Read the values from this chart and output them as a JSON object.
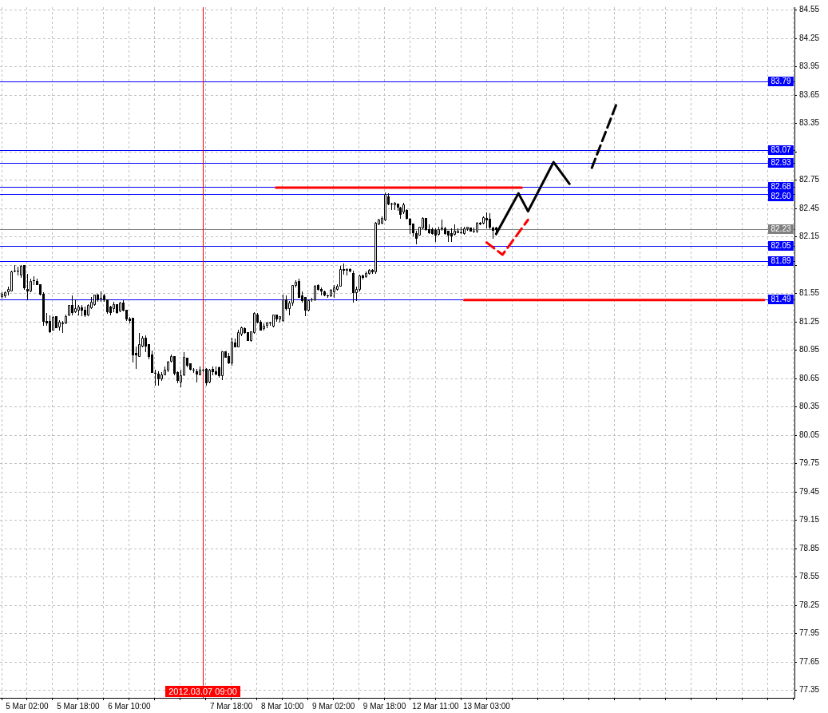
{
  "chart_data": {
    "type": "candlestick",
    "categories": [
      null,
      null,
      null,
      null,
      null,
      null,
      null,
      null,
      "5 Mar 02:00",
      null,
      null,
      null,
      null,
      null,
      null,
      null,
      null,
      null,
      null,
      null,
      null,
      null,
      null,
      null,
      "5 Mar 18:00",
      null,
      null,
      null,
      null,
      null,
      null,
      null,
      null,
      null,
      null,
      null,
      null,
      null,
      null,
      null,
      "6 Mar 10:00",
      null,
      null,
      null,
      null,
      null,
      null,
      null,
      null,
      null,
      null,
      null,
      null,
      null,
      null,
      null,
      null,
      null,
      null,
      null,
      null,
      null,
      null,
      "2012.03.07 09:00",
      null,
      null,
      null,
      null,
      null,
      null,
      null,
      null,
      "7 Mar 18:00",
      null,
      null,
      null,
      null,
      null,
      null,
      null,
      null,
      null,
      null,
      null,
      null,
      null,
      null,
      null,
      "8 Mar 10:00",
      null,
      null,
      null,
      null,
      null,
      null,
      null,
      null,
      null,
      null,
      null,
      null,
      null,
      null,
      null,
      "9 Mar 02:00",
      null,
      null,
      null,
      null,
      null,
      null,
      null,
      null,
      null,
      null,
      null,
      null,
      null,
      null,
      null,
      "9 Mar 18:00",
      null,
      null,
      null,
      null,
      null,
      null,
      null,
      null,
      null,
      null,
      null,
      null,
      null,
      null,
      null,
      "12 Mar 11:00",
      null,
      null,
      null,
      null,
      null,
      null,
      null,
      null,
      null,
      null,
      null,
      null,
      null,
      null,
      null,
      "13 Mar 03:00",
      null,
      null,
      null,
      null,
      null,
      null,
      null,
      null,
      null,
      null,
      null,
      null,
      null,
      null,
      null,
      null,
      null,
      null,
      null,
      null,
      null,
      null,
      null,
      null,
      null,
      null,
      null,
      null,
      null,
      null,
      null,
      null,
      null,
      null,
      null,
      null,
      null,
      null,
      null,
      null,
      null,
      null,
      null,
      null,
      null,
      null,
      null,
      null,
      null,
      null,
      null,
      null,
      null,
      null,
      null,
      null,
      null,
      null,
      null,
      null,
      null,
      null,
      null,
      null,
      null,
      null,
      null,
      null,
      null,
      null,
      null,
      null,
      null,
      null,
      null,
      null,
      null,
      null,
      null,
      null,
      null,
      null,
      null,
      null,
      null,
      null,
      null,
      null,
      null,
      null,
      null,
      null,
      null,
      null,
      null,
      null
    ],
    "ohlc": [
      [
        81.52,
        81.56,
        81.5,
        81.55
      ],
      [
        81.53,
        81.57,
        81.51,
        81.56
      ],
      [
        81.57,
        81.62,
        81.54,
        81.6
      ],
      [
        81.58,
        81.79,
        81.58,
        81.78
      ],
      [
        81.79,
        81.85,
        81.78,
        81.79
      ],
      [
        81.79,
        81.83,
        81.75,
        81.79
      ],
      [
        81.75,
        81.85,
        81.72,
        81.84
      ],
      [
        81.85,
        81.85,
        81.6,
        81.61
      ],
      [
        81.6,
        81.76,
        81.49,
        81.58
      ],
      [
        81.58,
        81.71,
        81.57,
        81.68
      ],
      [
        81.69,
        81.73,
        81.65,
        81.69
      ],
      [
        81.68,
        81.71,
        81.65,
        81.65
      ],
      [
        81.65,
        81.65,
        81.54,
        81.55
      ],
      [
        81.55,
        81.56,
        81.22,
        81.26
      ],
      [
        81.26,
        81.34,
        81.22,
        81.24
      ],
      [
        81.26,
        81.32,
        81.14,
        81.15
      ],
      [
        81.17,
        81.31,
        81.17,
        81.3
      ],
      [
        81.31,
        81.31,
        81.19,
        81.19
      ],
      [
        81.2,
        81.27,
        81.17,
        81.25
      ],
      [
        81.23,
        81.26,
        81.14,
        81.24
      ],
      [
        81.24,
        81.33,
        81.23,
        81.31
      ],
      [
        81.33,
        81.43,
        81.32,
        81.43
      ],
      [
        81.43,
        81.53,
        81.33,
        81.35
      ],
      [
        81.36,
        81.49,
        81.35,
        81.39
      ],
      [
        81.38,
        81.43,
        81.33,
        81.41
      ],
      [
        81.4,
        81.43,
        81.32,
        81.38
      ],
      [
        81.38,
        81.41,
        81.31,
        81.33
      ],
      [
        81.33,
        81.44,
        81.32,
        81.43
      ],
      [
        81.4,
        81.51,
        81.39,
        81.46
      ],
      [
        81.44,
        81.54,
        81.43,
        81.54
      ],
      [
        81.54,
        81.55,
        81.47,
        81.49
      ],
      [
        81.5,
        81.57,
        81.47,
        81.5
      ],
      [
        81.53,
        81.55,
        81.47,
        81.49
      ],
      [
        81.49,
        81.49,
        81.34,
        81.36
      ],
      [
        81.41,
        81.42,
        81.33,
        81.35
      ],
      [
        81.39,
        81.46,
        81.36,
        81.44
      ],
      [
        81.44,
        81.44,
        81.34,
        81.35
      ],
      [
        81.37,
        81.46,
        81.36,
        81.45
      ],
      [
        81.45,
        81.48,
        81.37,
        81.38
      ],
      [
        81.38,
        81.38,
        81.27,
        81.28
      ],
      [
        81.28,
        81.3,
        81.24,
        81.27
      ],
      [
        81.29,
        81.29,
        80.83,
        80.9
      ],
      [
        80.92,
        80.99,
        80.76,
        80.9
      ],
      [
        80.89,
        81.13,
        80.89,
        81.01
      ],
      [
        81.0,
        81.1,
        80.99,
        81.08
      ],
      [
        81.08,
        81.11,
        80.94,
        81.0
      ],
      [
        81.01,
        81.01,
        80.86,
        80.89
      ],
      [
        80.9,
        80.95,
        80.72,
        80.72
      ],
      [
        80.71,
        80.74,
        80.58,
        80.71
      ],
      [
        80.7,
        80.73,
        80.58,
        80.65
      ],
      [
        80.65,
        80.72,
        80.63,
        80.69
      ],
      [
        80.69,
        80.78,
        80.69,
        80.74
      ],
      [
        80.74,
        80.84,
        80.73,
        80.83
      ],
      [
        80.84,
        80.9,
        80.83,
        80.89
      ],
      [
        80.89,
        80.89,
        80.69,
        80.71
      ],
      [
        80.72,
        80.73,
        80.61,
        80.63
      ],
      [
        80.62,
        80.74,
        80.57,
        80.68
      ],
      [
        80.69,
        80.93,
        80.68,
        80.88
      ],
      [
        80.87,
        80.87,
        80.78,
        80.79
      ],
      [
        80.81,
        80.81,
        80.74,
        80.75
      ],
      [
        80.74,
        80.76,
        80.72,
        80.74
      ],
      [
        80.73,
        80.75,
        80.62,
        80.7
      ],
      [
        80.69,
        80.78,
        80.69,
        80.74
      ],
      [
        80.74,
        80.75,
        80.73,
        80.74
      ],
      [
        80.75,
        80.76,
        80.58,
        80.61
      ],
      [
        80.62,
        80.75,
        80.61,
        80.74
      ],
      [
        80.75,
        80.78,
        80.69,
        80.73
      ],
      [
        80.73,
        80.78,
        80.69,
        80.7
      ],
      [
        80.77,
        80.78,
        80.67,
        80.68
      ],
      [
        80.68,
        80.94,
        80.64,
        80.94
      ],
      [
        80.94,
        80.94,
        80.88,
        80.88
      ],
      [
        80.89,
        80.92,
        80.81,
        80.82
      ],
      [
        80.82,
        81.08,
        80.79,
        81.04
      ],
      [
        81.03,
        81.07,
        80.99,
        80.99
      ],
      [
        80.99,
        81.17,
        80.99,
        81.14
      ],
      [
        81.12,
        81.2,
        81.11,
        81.19
      ],
      [
        81.18,
        81.19,
        81.13,
        81.14
      ],
      [
        81.14,
        81.14,
        81.06,
        81.06
      ],
      [
        81.06,
        81.15,
        81.05,
        81.15
      ],
      [
        81.14,
        81.35,
        81.13,
        81.34
      ],
      [
        81.33,
        81.34,
        81.24,
        81.25
      ],
      [
        81.25,
        81.27,
        81.17,
        81.17
      ],
      [
        81.18,
        81.23,
        81.17,
        81.21
      ],
      [
        81.22,
        81.25,
        81.19,
        81.24
      ],
      [
        81.24,
        81.25,
        81.22,
        81.24
      ],
      [
        81.21,
        81.33,
        81.2,
        81.33
      ],
      [
        81.33,
        81.33,
        81.26,
        81.28
      ],
      [
        81.28,
        81.31,
        81.25,
        81.31
      ],
      [
        81.27,
        81.54,
        81.26,
        81.49
      ],
      [
        81.49,
        81.53,
        81.38,
        81.39
      ],
      [
        81.39,
        81.47,
        81.33,
        81.45
      ],
      [
        81.45,
        81.64,
        81.43,
        81.64
      ],
      [
        81.64,
        81.69,
        81.62,
        81.67
      ],
      [
        81.68,
        81.71,
        81.51,
        81.51
      ],
      [
        81.53,
        81.57,
        81.46,
        81.48
      ],
      [
        81.51,
        81.51,
        81.32,
        81.38
      ],
      [
        81.38,
        81.49,
        81.37,
        81.48
      ],
      [
        81.49,
        81.5,
        81.47,
        81.49
      ],
      [
        81.49,
        81.64,
        81.48,
        81.63
      ],
      [
        81.64,
        81.65,
        81.59,
        81.6
      ],
      [
        81.6,
        81.61,
        81.54,
        81.58
      ],
      [
        81.57,
        81.58,
        81.53,
        81.54
      ],
      [
        81.53,
        81.54,
        81.51,
        81.53
      ],
      [
        81.53,
        81.6,
        81.52,
        81.59
      ],
      [
        81.57,
        81.64,
        81.51,
        81.61
      ],
      [
        81.6,
        81.65,
        81.59,
        81.63
      ],
      [
        81.63,
        81.84,
        81.63,
        81.81
      ],
      [
        81.81,
        81.87,
        81.76,
        81.8
      ],
      [
        81.8,
        81.82,
        81.75,
        81.81
      ],
      [
        81.81,
        81.82,
        81.78,
        81.79
      ],
      [
        81.77,
        81.79,
        81.46,
        81.56
      ],
      [
        81.56,
        81.62,
        81.48,
        81.6
      ],
      [
        81.6,
        81.75,
        81.58,
        81.74
      ],
      [
        81.74,
        81.75,
        81.71,
        81.72
      ],
      [
        81.73,
        81.78,
        81.72,
        81.77
      ],
      [
        81.77,
        81.81,
        81.76,
        81.8
      ],
      [
        81.8,
        81.81,
        81.77,
        81.78
      ],
      [
        81.78,
        82.31,
        81.77,
        82.3
      ],
      [
        82.29,
        82.34,
        82.28,
        82.33
      ],
      [
        82.3,
        82.37,
        82.29,
        82.35
      ],
      [
        82.33,
        82.62,
        82.32,
        82.6
      ],
      [
        82.58,
        82.61,
        82.49,
        82.5
      ],
      [
        82.5,
        82.51,
        82.44,
        82.5
      ],
      [
        82.49,
        82.52,
        82.44,
        82.51
      ],
      [
        82.5,
        82.5,
        82.43,
        82.47
      ],
      [
        82.46,
        82.47,
        82.35,
        82.39
      ],
      [
        82.42,
        82.51,
        82.4,
        82.49
      ],
      [
        82.43,
        82.44,
        82.34,
        82.35
      ],
      [
        82.34,
        82.35,
        82.19,
        82.28
      ],
      [
        82.29,
        82.29,
        82.16,
        82.2
      ],
      [
        82.19,
        82.21,
        82.08,
        82.14
      ],
      [
        82.17,
        82.26,
        82.17,
        82.26
      ],
      [
        82.25,
        82.36,
        82.24,
        82.35
      ],
      [
        82.35,
        82.35,
        82.22,
        82.23
      ],
      [
        82.23,
        82.28,
        82.19,
        82.2
      ],
      [
        82.23,
        82.25,
        82.18,
        82.19
      ],
      [
        82.22,
        82.24,
        82.1,
        82.17
      ],
      [
        82.18,
        82.26,
        82.17,
        82.23
      ],
      [
        82.24,
        82.33,
        82.22,
        82.25
      ],
      [
        82.24,
        82.26,
        82.18,
        82.19
      ],
      [
        82.21,
        82.21,
        82.1,
        82.17
      ],
      [
        82.19,
        82.24,
        82.1,
        82.16
      ],
      [
        82.18,
        82.28,
        82.17,
        82.21
      ],
      [
        82.2,
        82.24,
        82.2,
        82.21
      ],
      [
        82.2,
        82.26,
        82.19,
        82.2
      ],
      [
        82.19,
        82.26,
        82.18,
        82.24
      ],
      [
        82.24,
        82.26,
        82.22,
        82.26
      ],
      [
        82.25,
        82.25,
        82.21,
        82.21
      ],
      [
        82.21,
        82.25,
        82.2,
        82.21
      ],
      [
        82.21,
        82.31,
        82.2,
        82.3
      ],
      [
        82.3,
        82.31,
        82.28,
        82.29
      ],
      [
        82.3,
        82.37,
        82.29,
        82.36
      ],
      [
        82.35,
        82.41,
        82.25,
        82.33
      ],
      [
        82.34,
        82.4,
        82.24,
        82.26
      ],
      [
        82.25,
        82.26,
        82.14,
        82.22
      ],
      [
        82.25,
        82.26,
        82.17,
        82.23
      ],
      null,
      null,
      null,
      null,
      null,
      null,
      null,
      null,
      null,
      null,
      null,
      null,
      null,
      null,
      null,
      null,
      null,
      null,
      null,
      null,
      null,
      null,
      null,
      null,
      null,
      null,
      null,
      null,
      null,
      null,
      null,
      null,
      null,
      null,
      null,
      null,
      null,
      null,
      null,
      null,
      null,
      null,
      null,
      null,
      null,
      null,
      null,
      null,
      null,
      null,
      null,
      null,
      null,
      null,
      null,
      null,
      null,
      null,
      null,
      null,
      null,
      null,
      null,
      null,
      null,
      null,
      null,
      null,
      null,
      null,
      null,
      null,
      null,
      null,
      null,
      null,
      null,
      null,
      null,
      null,
      null,
      null,
      null,
      null,
      null,
      null,
      null,
      null,
      null,
      null,
      null,
      null,
      null
    ],
    "series": [
      {
        "type": "line",
        "color": "#000000",
        "values": [
          null,
          null,
          null,
          null,
          null,
          null,
          null,
          null,
          null,
          null,
          null,
          null,
          null,
          null,
          null,
          null,
          null,
          null,
          null,
          null,
          null,
          null,
          null,
          null,
          null,
          null,
          null,
          null,
          null,
          null,
          null,
          null,
          null,
          null,
          null,
          null,
          null,
          null,
          null,
          null,
          null,
          null,
          null,
          null,
          null,
          null,
          null,
          null,
          null,
          null,
          null,
          null,
          null,
          null,
          null,
          null,
          null,
          null,
          null,
          null,
          null,
          null,
          null,
          null,
          null,
          null,
          null,
          null,
          null,
          null,
          null,
          null,
          null,
          null,
          null,
          null,
          null,
          null,
          null,
          null,
          null,
          null,
          null,
          null,
          null,
          null,
          null,
          null,
          null,
          null,
          null,
          null,
          null,
          null,
          null,
          null,
          null,
          null,
          null,
          null,
          null,
          null,
          null,
          null,
          null,
          null,
          null,
          null,
          null,
          null,
          null,
          null,
          null,
          null,
          null,
          null,
          null,
          null,
          null,
          null,
          null,
          null,
          null,
          null,
          null,
          null,
          null,
          null,
          null,
          null,
          null,
          null,
          null,
          null,
          null,
          null,
          null,
          null,
          null,
          null,
          null,
          null,
          null,
          null,
          null,
          null,
          null,
          null,
          null,
          null,
          null,
          null,
          null,
          null,
          null,
          82.18,
          null,
          null,
          null,
          null,
          null,
          null,
          82.61,
          null,
          null,
          82.42,
          null,
          null,
          null,
          null,
          null,
          null,
          null,
          82.94,
          null,
          null,
          null,
          null,
          82.71,
          null,
          null,
          null,
          null,
          null,
          null,
          null,
          null,
          null,
          null,
          null,
          null,
          null,
          null,
          null,
          null,
          null,
          null,
          null,
          null,
          null,
          null,
          null,
          null,
          null,
          null,
          null,
          null,
          null,
          null,
          null,
          null,
          null,
          null,
          null,
          null,
          null,
          null,
          null,
          null,
          null,
          null,
          null,
          null,
          null,
          null,
          null,
          null,
          null,
          null,
          null,
          null,
          null,
          null,
          null,
          null,
          null,
          null,
          null,
          null,
          null,
          null,
          null,
          null,
          null,
          null,
          null,
          null,
          null,
          null
        ]
      },
      {
        "type": "line",
        "color": "#000000",
        "line_style": "dashed",
        "values": [
          null,
          null,
          null,
          null,
          null,
          null,
          null,
          null,
          null,
          null,
          null,
          null,
          null,
          null,
          null,
          null,
          null,
          null,
          null,
          null,
          null,
          null,
          null,
          null,
          null,
          null,
          null,
          null,
          null,
          null,
          null,
          null,
          null,
          null,
          null,
          null,
          null,
          null,
          null,
          null,
          null,
          null,
          null,
          null,
          null,
          null,
          null,
          null,
          null,
          null,
          null,
          null,
          null,
          null,
          null,
          null,
          null,
          null,
          null,
          null,
          null,
          null,
          null,
          null,
          null,
          null,
          null,
          null,
          null,
          null,
          null,
          null,
          null,
          null,
          null,
          null,
          null,
          null,
          null,
          null,
          null,
          null,
          null,
          null,
          null,
          null,
          null,
          null,
          null,
          null,
          null,
          null,
          null,
          null,
          null,
          null,
          null,
          null,
          null,
          null,
          null,
          null,
          null,
          null,
          null,
          null,
          null,
          null,
          null,
          null,
          null,
          null,
          null,
          null,
          null,
          null,
          null,
          null,
          null,
          null,
          null,
          null,
          null,
          null,
          null,
          null,
          null,
          null,
          null,
          null,
          null,
          null,
          null,
          null,
          null,
          null,
          null,
          null,
          null,
          null,
          null,
          null,
          null,
          null,
          null,
          null,
          null,
          null,
          null,
          null,
          null,
          null,
          null,
          null,
          null,
          null,
          null,
          null,
          null,
          null,
          null,
          null,
          null,
          null,
          null,
          null,
          null,
          null,
          null,
          null,
          null,
          null,
          null,
          null,
          null,
          null,
          null,
          null,
          null,
          null,
          null,
          null,
          null,
          null,
          null,
          82.88,
          null,
          null,
          null,
          null,
          null,
          null,
          null,
          83.58,
          null,
          null,
          null,
          null,
          null,
          null,
          null,
          null,
          null,
          null,
          null,
          null,
          null,
          null,
          null,
          null,
          null,
          null,
          null,
          null,
          null,
          null,
          null,
          null,
          null,
          null,
          null,
          null,
          null,
          null,
          null,
          null,
          null,
          null,
          null,
          null,
          null,
          null,
          null,
          null,
          null,
          null,
          null,
          null,
          null,
          null,
          null,
          null,
          null,
          null,
          null,
          null,
          null,
          null,
          null
        ]
      },
      {
        "type": "line",
        "color": "#ff0000",
        "line_style": "dashed",
        "values": [
          null,
          null,
          null,
          null,
          null,
          null,
          null,
          null,
          null,
          null,
          null,
          null,
          null,
          null,
          null,
          null,
          null,
          null,
          null,
          null,
          null,
          null,
          null,
          null,
          null,
          null,
          null,
          null,
          null,
          null,
          null,
          null,
          null,
          null,
          null,
          null,
          null,
          null,
          null,
          null,
          null,
          null,
          null,
          null,
          null,
          null,
          null,
          null,
          null,
          null,
          null,
          null,
          null,
          null,
          null,
          null,
          null,
          null,
          null,
          null,
          null,
          null,
          null,
          null,
          null,
          null,
          null,
          null,
          null,
          null,
          null,
          null,
          null,
          null,
          null,
          null,
          null,
          null,
          null,
          null,
          null,
          null,
          null,
          null,
          null,
          null,
          null,
          null,
          null,
          null,
          null,
          null,
          null,
          null,
          null,
          null,
          null,
          null,
          null,
          null,
          null,
          null,
          null,
          null,
          null,
          null,
          null,
          null,
          null,
          null,
          null,
          null,
          null,
          null,
          null,
          null,
          null,
          null,
          null,
          null,
          null,
          null,
          null,
          null,
          null,
          null,
          null,
          null,
          null,
          null,
          null,
          null,
          null,
          null,
          null,
          null,
          null,
          null,
          null,
          null,
          null,
          null,
          null,
          null,
          null,
          null,
          null,
          null,
          null,
          null,
          null,
          null,
          82.09,
          null,
          null,
          null,
          null,
          81.96,
          null,
          null,
          null,
          null,
          null,
          null,
          null,
          82.33,
          null,
          null,
          null,
          null,
          null,
          null,
          null,
          null,
          null,
          null,
          null,
          null,
          null,
          null,
          null,
          null,
          null,
          null,
          null,
          null,
          null,
          null,
          null,
          null,
          null,
          null,
          null,
          null,
          null,
          null,
          null,
          null,
          null,
          null,
          null,
          null,
          null,
          null,
          null,
          null,
          null,
          null,
          null,
          null,
          null,
          null,
          null,
          null,
          null,
          null,
          null,
          null,
          null,
          null,
          null,
          null,
          null,
          null,
          null,
          null,
          null,
          null,
          null,
          null,
          null,
          null,
          null,
          null,
          null,
          null,
          null,
          null,
          null,
          null,
          null,
          null,
          null,
          null,
          null,
          null,
          null,
          null,
          null
        ]
      },
      {
        "type": "line",
        "color": "#ff0000",
        "values": [
          null,
          null,
          null,
          null,
          null,
          null,
          null,
          null,
          null,
          null,
          null,
          null,
          null,
          null,
          null,
          null,
          null,
          null,
          null,
          null,
          null,
          null,
          null,
          null,
          null,
          null,
          null,
          null,
          null,
          null,
          null,
          null,
          null,
          null,
          null,
          null,
          null,
          null,
          null,
          null,
          null,
          null,
          null,
          null,
          null,
          null,
          null,
          null,
          null,
          null,
          null,
          null,
          null,
          null,
          null,
          null,
          null,
          null,
          null,
          null,
          null,
          null,
          null,
          null,
          null,
          null,
          null,
          null,
          null,
          null,
          null,
          null,
          null,
          null,
          null,
          null,
          null,
          null,
          null,
          null,
          null,
          null,
          null,
          null,
          null,
          null,
          82.67,
          null,
          null,
          null,
          null,
          null,
          null,
          null,
          null,
          null,
          null,
          null,
          null,
          null,
          null,
          null,
          null,
          null,
          null,
          null,
          null,
          null,
          null,
          null,
          null,
          null,
          null,
          null,
          null,
          null,
          null,
          null,
          null,
          null,
          null,
          null,
          null,
          null,
          null,
          null,
          null,
          null,
          null,
          null,
          null,
          null,
          null,
          null,
          null,
          null,
          null,
          null,
          null,
          null,
          null,
          null,
          null,
          null,
          null,
          null,
          null,
          null,
          null,
          null,
          null,
          null,
          null,
          null,
          null,
          null,
          null,
          null,
          null,
          null,
          null,
          null,
          null,
          82.67,
          null,
          null,
          null,
          null,
          null,
          null,
          null,
          null,
          null,
          null,
          null,
          null,
          null,
          null,
          null,
          null,
          null,
          null,
          null,
          null,
          null,
          null,
          null,
          null,
          null,
          null,
          null,
          null,
          null,
          null,
          null,
          null,
          null,
          null,
          null,
          null,
          null,
          null,
          null,
          null,
          null,
          null,
          null,
          null,
          null,
          null,
          null,
          null,
          null,
          null,
          null,
          null,
          null,
          null,
          null,
          null,
          null,
          null,
          null,
          null,
          null,
          null,
          null,
          null,
          null,
          null,
          null,
          null,
          null,
          null,
          null,
          null,
          null,
          null,
          null,
          null,
          null,
          null,
          null,
          null,
          null,
          null,
          null,
          null,
          null
        ]
      },
      {
        "type": "line",
        "color": "#ff0000",
        "values": [
          null,
          null,
          null,
          null,
          null,
          null,
          null,
          null,
          null,
          null,
          null,
          null,
          null,
          null,
          null,
          null,
          null,
          null,
          null,
          null,
          null,
          null,
          null,
          null,
          null,
          null,
          null,
          null,
          null,
          null,
          null,
          null,
          null,
          null,
          null,
          null,
          null,
          null,
          null,
          null,
          null,
          null,
          null,
          null,
          null,
          null,
          null,
          null,
          null,
          null,
          null,
          null,
          null,
          null,
          null,
          null,
          null,
          null,
          null,
          null,
          null,
          null,
          null,
          null,
          null,
          null,
          null,
          null,
          null,
          null,
          null,
          null,
          null,
          null,
          null,
          null,
          null,
          null,
          null,
          null,
          null,
          null,
          null,
          null,
          null,
          null,
          null,
          null,
          null,
          null,
          null,
          null,
          null,
          null,
          null,
          null,
          null,
          null,
          null,
          null,
          null,
          null,
          null,
          null,
          null,
          null,
          null,
          null,
          null,
          null,
          null,
          null,
          null,
          null,
          null,
          null,
          null,
          null,
          null,
          null,
          null,
          null,
          null,
          null,
          null,
          null,
          null,
          null,
          null,
          null,
          null,
          null,
          null,
          null,
          null,
          null,
          null,
          null,
          null,
          null,
          null,
          null,
          null,
          null,
          null,
          81.48,
          null,
          null,
          null,
          null,
          null,
          null,
          null,
          null,
          null,
          null,
          null,
          null,
          null,
          null,
          null,
          null,
          null,
          null,
          null,
          null,
          null,
          null,
          null,
          null,
          null,
          null,
          null,
          null,
          null,
          null,
          null,
          null,
          null,
          null,
          null,
          null,
          null,
          null,
          null,
          null,
          null,
          null,
          null,
          null,
          null,
          null,
          null,
          null,
          null,
          null,
          null,
          null,
          null,
          null,
          null,
          null,
          null,
          null,
          null,
          null,
          null,
          null,
          null,
          null,
          null,
          null,
          null,
          null,
          null,
          null,
          null,
          null,
          null,
          null,
          null,
          null,
          null,
          null,
          null,
          null,
          null,
          null,
          null,
          null,
          null,
          null,
          null,
          null,
          null,
          null,
          null,
          null,
          null,
          81.48,
          null,
          null,
          null,
          null,
          null,
          null,
          null,
          null,
          null
        ]
      }
    ],
    "ylim": [
      77.27,
      84.58
    ],
    "yticks": [
      84.55,
      84.25,
      83.95,
      83.65,
      83.35,
      {
        "value": 83.05,
        "label": null
      },
      82.75,
      82.45,
      82.15,
      {
        "value": 81.85,
        "label": null
      },
      81.55,
      81.25,
      80.95,
      80.65,
      80.35,
      80.05,
      79.75,
      79.45,
      79.15,
      78.85,
      78.55,
      78.25,
      77.95,
      77.65,
      77.35
    ],
    "ref_lines": [
      {
        "axis": "y",
        "value": 83.79,
        "label": "83.79",
        "color": "#0000ff"
      },
      {
        "axis": "y",
        "value": 83.07,
        "label": "83.07",
        "color": "#0000ff"
      },
      {
        "axis": "y",
        "value": 82.93,
        "label": "82.93",
        "color": "#0000ff"
      },
      {
        "axis": "y",
        "value": 82.68,
        "label": "82.68",
        "color": "#0000ff"
      },
      {
        "axis": "y",
        "value": 82.6,
        "label": "82.60",
        "color": "#0000ff"
      },
      {
        "axis": "y",
        "value": 82.23,
        "label": "82.23",
        "color": "#808080"
      },
      {
        "axis": "y",
        "value": 82.05,
        "label": "82.05",
        "color": "#0000ff"
      },
      {
        "axis": "y",
        "value": 81.89,
        "label": "81.89",
        "color": "#0000ff"
      },
      {
        "axis": "y",
        "value": 81.49,
        "label": "81.49",
        "color": "#0000ff"
      },
      {
        "axis": "x",
        "value": "2012.03.07 09:00",
        "color": "#ff0000"
      }
    ],
    "grid": true,
    "marker": "none"
  }
}
